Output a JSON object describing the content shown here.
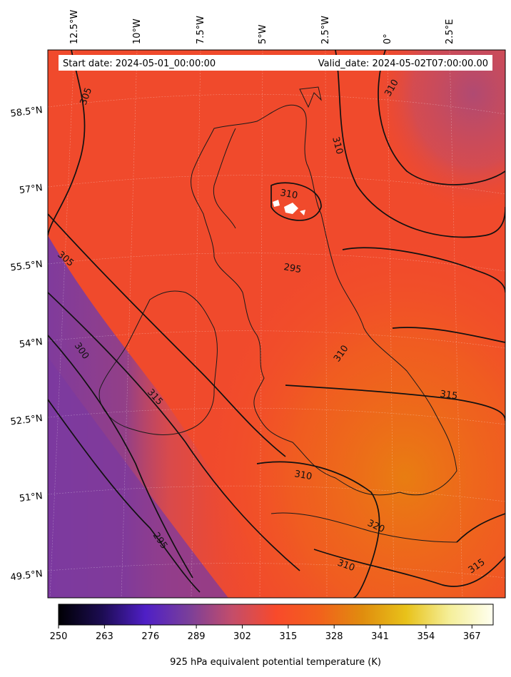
{
  "header": {
    "start_date": "Start date: 2024-05-01_00:00:00",
    "valid_date": "Valid_date: 2024-05-02T07:00:00.00"
  },
  "longitude_labels": [
    "12.5°W",
    "10°W",
    "7.5°W",
    "5°W",
    "2.5°W",
    "0°",
    "2.5°E"
  ],
  "latitude_labels": [
    "58.5°N",
    "57°N",
    "55.5°N",
    "54°N",
    "52.5°N",
    "51°N",
    "49.5°N"
  ],
  "contour_labels": [
    "305",
    "310",
    "310",
    "310",
    "305",
    "295",
    "300",
    "315",
    "310",
    "315",
    "310",
    "320",
    "310",
    "295",
    "315"
  ],
  "colorbar": {
    "label": "925 hPa equivalent potential temperature (K)",
    "ticks": [
      "250",
      "263",
      "276",
      "289",
      "302",
      "315",
      "328",
      "341",
      "354",
      "367"
    ],
    "min": 250,
    "max": 373,
    "colors": [
      "#000004",
      "#1c0c52",
      "#4f1fc6",
      "#7a3f9a",
      "#c44d6a",
      "#f84a2b",
      "#f2611c",
      "#e08d0e",
      "#e8c21a",
      "#f5ef9a",
      "#fffff0"
    ]
  },
  "field": {
    "quantity": "925 hPa equivalent potential temperature",
    "unit": "K",
    "contour_levels": [
      295,
      300,
      305,
      310,
      315,
      320
    ]
  },
  "colors": {
    "frame": "#000000",
    "contour": "#111111",
    "coast": "#1a1a1a"
  }
}
